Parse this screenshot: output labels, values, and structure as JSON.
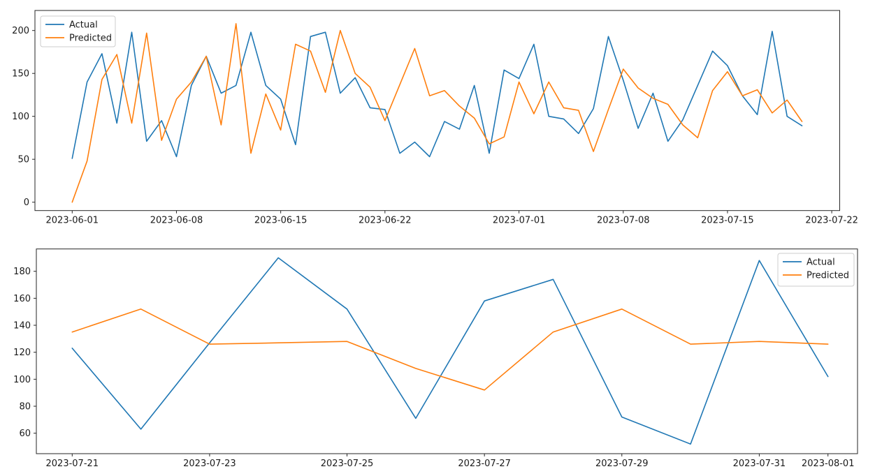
{
  "figure": {
    "background": "#ffffff",
    "kind": "matplotlib-style line plots, two stacked subplots, no titles"
  },
  "colors": {
    "actual": "#1f77b4",
    "predicted": "#ff7f0e",
    "spine": "#262626",
    "legend_border": "#cccccc",
    "text": "#1a1a1a"
  },
  "legend": {
    "actual_label": "Actual",
    "predicted_label": "Predicted"
  },
  "chart_data": [
    {
      "id": "top",
      "type": "line",
      "title": "",
      "xlabel": "",
      "ylabel": "",
      "grid": false,
      "legend_position": "upper left",
      "ylim": [
        -10.4,
        223.3
      ],
      "y_ticks": [
        0,
        50,
        100,
        150,
        200
      ],
      "x_tick_labels": [
        "2023-06-01",
        "2023-06-08",
        "2023-06-15",
        "2023-06-22",
        "2023-07-01",
        "2023-07-08",
        "2023-07-15",
        "2023-07-22"
      ],
      "x_tick_positions": [
        0,
        7,
        14,
        21,
        30,
        37,
        44,
        51
      ],
      "x": [
        "2023-06-01",
        "2023-06-02",
        "2023-06-03",
        "2023-06-04",
        "2023-06-05",
        "2023-06-06",
        "2023-06-07",
        "2023-06-08",
        "2023-06-09",
        "2023-06-10",
        "2023-06-11",
        "2023-06-12",
        "2023-06-13",
        "2023-06-14",
        "2023-06-15",
        "2023-06-16",
        "2023-06-17",
        "2023-06-18",
        "2023-06-19",
        "2023-06-20",
        "2023-06-21",
        "2023-06-22",
        "2023-06-23",
        "2023-06-24",
        "2023-06-25",
        "2023-06-26",
        "2023-06-27",
        "2023-06-28",
        "2023-06-29",
        "2023-06-30",
        "2023-07-01",
        "2023-07-02",
        "2023-07-03",
        "2023-07-04",
        "2023-07-05",
        "2023-07-06",
        "2023-07-07",
        "2023-07-08",
        "2023-07-09",
        "2023-07-10",
        "2023-07-11",
        "2023-07-12",
        "2023-07-13",
        "2023-07-14",
        "2023-07-15",
        "2023-07-16",
        "2023-07-17",
        "2023-07-18",
        "2023-07-19",
        "2023-07-20"
      ],
      "series": [
        {
          "name": "Actual",
          "color": "#1f77b4",
          "values": [
            51,
            140,
            173,
            92,
            198,
            71,
            95,
            53,
            136,
            170,
            127,
            136,
            198,
            136,
            120,
            67,
            193,
            198,
            127,
            145,
            110,
            108,
            57,
            70,
            53,
            94,
            85,
            136,
            57,
            154,
            144,
            184,
            100,
            97,
            80,
            109,
            193,
            142,
            86,
            127,
            71,
            96,
            136,
            176,
            159,
            124,
            102,
            199,
            100,
            89
          ]
        },
        {
          "name": "Predicted",
          "color": "#ff7f0e",
          "values": [
            0,
            48,
            143,
            172,
            92,
            197,
            72,
            120,
            140,
            170,
            90,
            208,
            57,
            126,
            84,
            184,
            176,
            128,
            200,
            150,
            134,
            95,
            137,
            179,
            124,
            130,
            112,
            98,
            68,
            76,
            140,
            103,
            140,
            110,
            107,
            59,
            108,
            155,
            133,
            121,
            114,
            90,
            75,
            130,
            152,
            124,
            131,
            104,
            119,
            94
          ]
        }
      ]
    },
    {
      "id": "bottom",
      "type": "line",
      "title": "",
      "xlabel": "",
      "ylabel": "",
      "grid": false,
      "legend_position": "upper right",
      "ylim": [
        44.8,
        196.6
      ],
      "y_ticks": [
        60,
        80,
        100,
        120,
        140,
        160,
        180
      ],
      "x_tick_labels": [
        "2023-07-21",
        "2023-07-23",
        "2023-07-25",
        "2023-07-27",
        "2023-07-29",
        "2023-07-31",
        "2023-08-01"
      ],
      "x_tick_positions": [
        0,
        2,
        4,
        6,
        8,
        10,
        11
      ],
      "x": [
        "2023-07-21",
        "2023-07-22",
        "2023-07-23",
        "2023-07-24",
        "2023-07-25",
        "2023-07-26",
        "2023-07-27",
        "2023-07-28",
        "2023-07-29",
        "2023-07-30",
        "2023-07-31",
        "2023-08-01"
      ],
      "series": [
        {
          "name": "Actual",
          "color": "#1f77b4",
          "values": [
            123,
            63,
            127,
            190,
            152,
            71,
            158,
            174,
            72,
            52,
            188,
            102
          ]
        },
        {
          "name": "Predicted",
          "color": "#ff7f0e",
          "values": [
            135,
            152,
            126,
            127,
            128,
            108,
            92,
            135,
            152,
            126,
            128,
            126
          ]
        }
      ]
    }
  ]
}
